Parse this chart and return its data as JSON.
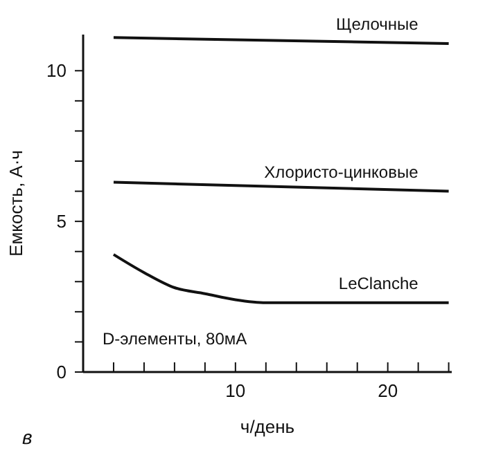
{
  "chart_data": {
    "type": "line",
    "xlabel": "ч/день",
    "ylabel": "Емкость, А·ч",
    "xlim": [
      0,
      24.2
    ],
    "ylim": [
      0,
      11.2
    ],
    "xticks": [
      {
        "value": 2,
        "label": null
      },
      {
        "value": 4,
        "label": null
      },
      {
        "value": 6,
        "label": null
      },
      {
        "value": 8,
        "label": null
      },
      10,
      {
        "value": 12,
        "label": null
      },
      {
        "value": 14,
        "label": null
      },
      {
        "value": 16,
        "label": null
      },
      {
        "value": 18,
        "label": null
      },
      20,
      {
        "value": 22,
        "label": null
      },
      {
        "value": 24,
        "label": null
      }
    ],
    "yticks": [
      0,
      {
        "value": 1,
        "label": null
      },
      {
        "value": 2,
        "label": null
      },
      {
        "value": 3,
        "label": null
      },
      {
        "value": 4,
        "label": null
      },
      5,
      {
        "value": 6,
        "label": null
      },
      {
        "value": 7,
        "label": null
      },
      {
        "value": 8,
        "label": null
      },
      {
        "value": 9,
        "label": null
      },
      10
    ],
    "marker": "none",
    "line_style": "solid",
    "annotations": [
      "D-элементы, 80мА",
      "в"
    ],
    "series": [
      {
        "name": "Щелочные",
        "color": "#111111",
        "x": [
          2,
          24
        ],
        "values": [
          11.1,
          10.9
        ]
      },
      {
        "name": "Хлористо-цинковые",
        "color": "#111111",
        "x": [
          2,
          24
        ],
        "values": [
          6.3,
          6.0
        ]
      },
      {
        "name": "LeClanche",
        "color": "#111111",
        "x": [
          2,
          4,
          6,
          8,
          10,
          12,
          16,
          24
        ],
        "values": [
          3.9,
          3.3,
          2.8,
          2.6,
          2.4,
          2.3,
          2.3,
          2.3
        ]
      }
    ]
  }
}
